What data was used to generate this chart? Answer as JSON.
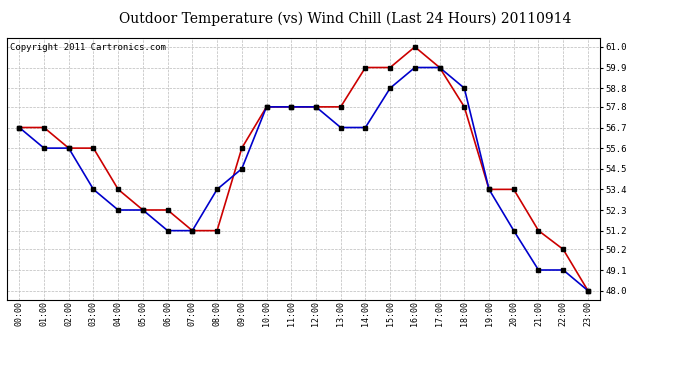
{
  "title": "Outdoor Temperature (vs) Wind Chill (Last 24 Hours) 20110914",
  "copyright": "Copyright 2011 Cartronics.com",
  "hours": [
    "00:00",
    "01:00",
    "02:00",
    "03:00",
    "04:00",
    "05:00",
    "06:00",
    "07:00",
    "08:00",
    "09:00",
    "10:00",
    "11:00",
    "12:00",
    "13:00",
    "14:00",
    "15:00",
    "16:00",
    "17:00",
    "18:00",
    "19:00",
    "20:00",
    "21:00",
    "22:00",
    "23:00"
  ],
  "temp": [
    56.7,
    56.7,
    55.6,
    55.6,
    53.4,
    52.3,
    52.3,
    51.2,
    51.2,
    55.6,
    57.8,
    57.8,
    57.8,
    57.8,
    59.9,
    59.9,
    61.0,
    59.9,
    57.8,
    53.4,
    53.4,
    51.2,
    50.2,
    48.0
  ],
  "wind_chill": [
    56.7,
    55.6,
    55.6,
    53.4,
    52.3,
    52.3,
    51.2,
    51.2,
    53.4,
    54.5,
    57.8,
    57.8,
    57.8,
    56.7,
    56.7,
    58.8,
    59.9,
    59.9,
    58.8,
    53.4,
    51.2,
    49.1,
    49.1,
    48.0
  ],
  "temp_color": "#cc0000",
  "wind_chill_color": "#0000cc",
  "ylim_min": 47.5,
  "ylim_max": 61.5,
  "yticks": [
    48.0,
    49.1,
    50.2,
    51.2,
    52.3,
    53.4,
    54.5,
    55.6,
    56.7,
    57.8,
    58.8,
    59.9,
    61.0
  ],
  "bg_color": "#ffffff",
  "grid_color": "#bbbbbb",
  "title_fontsize": 10,
  "copyright_fontsize": 6.5,
  "marker": "s",
  "marker_size": 2.5,
  "line_width": 1.2
}
